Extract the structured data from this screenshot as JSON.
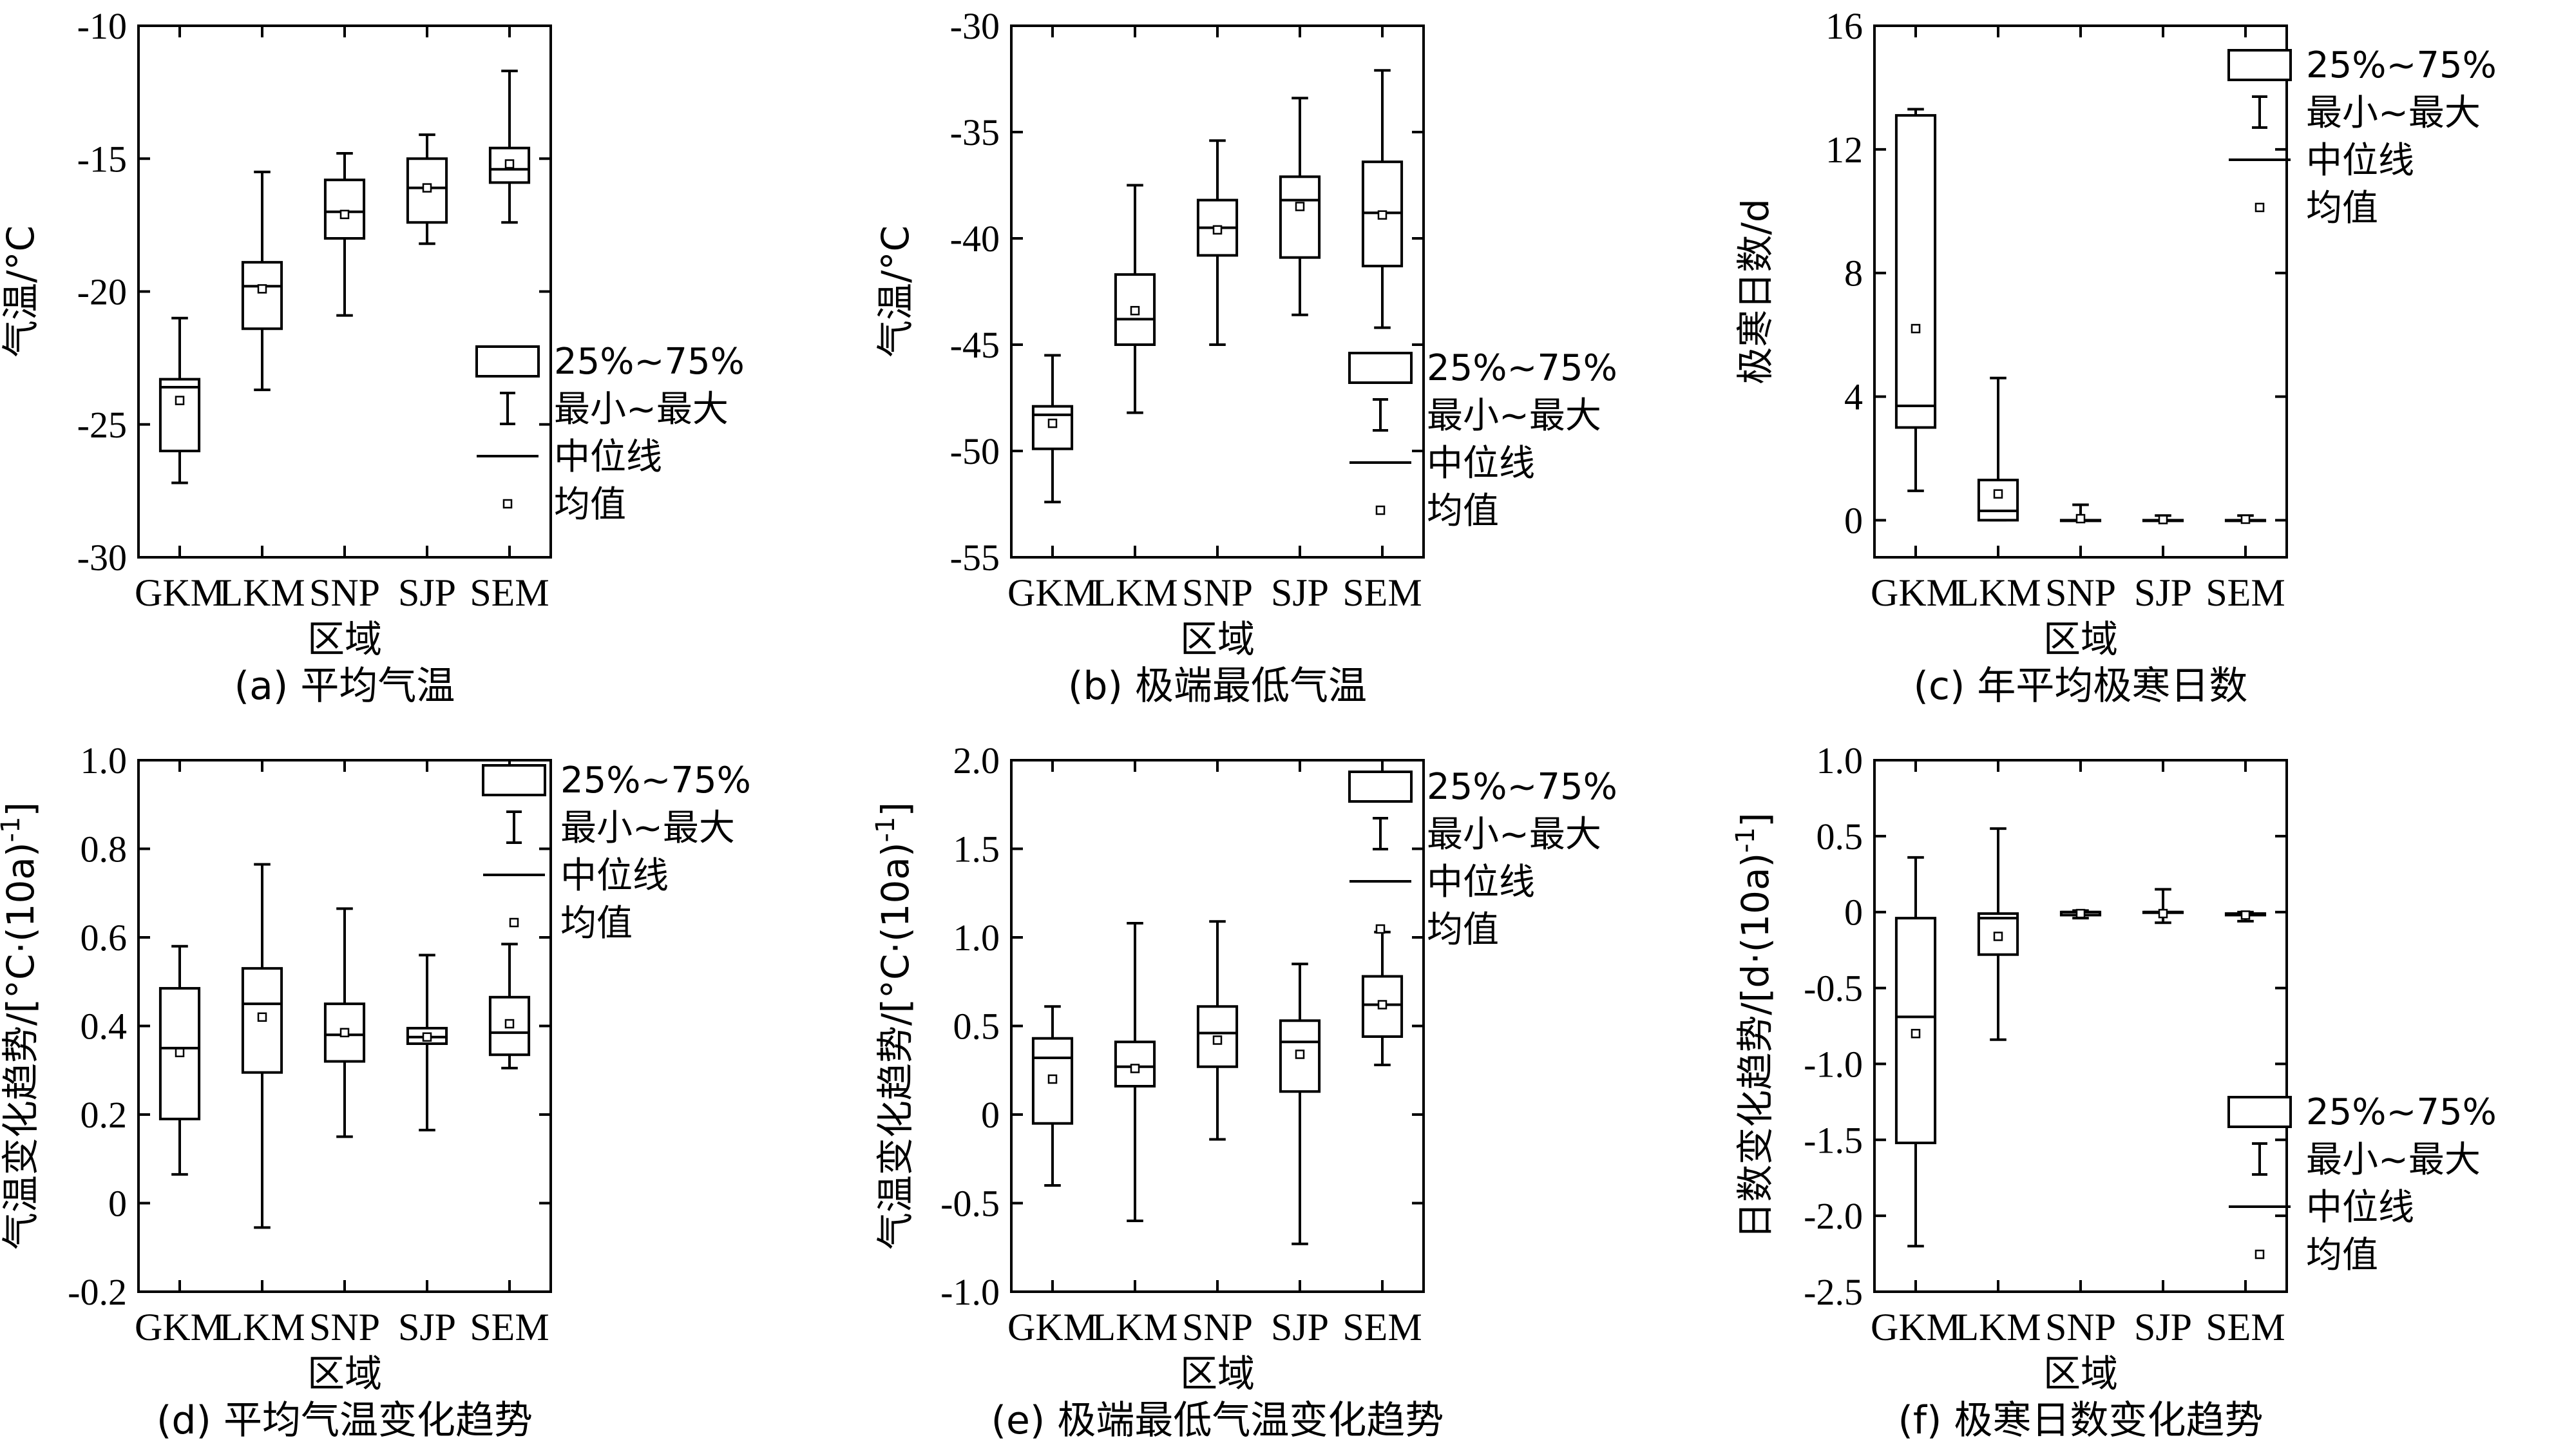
{
  "chart_data": [
    {
      "type": "box",
      "caption": "(a) 平均气温",
      "xlabel": "区域",
      "ylabel": "气温/°C",
      "ylim": [
        -30,
        -10
      ],
      "yticks": [
        -30,
        -25,
        -20,
        -15,
        -10
      ],
      "yticks_labels": [
        "-30",
        "-25",
        "-20",
        "-15",
        "-10"
      ],
      "categories": [
        "GKM",
        "LKM",
        "SNP",
        "SJP",
        "SEM"
      ],
      "boxes": [
        {
          "min": -27.2,
          "q1": -26.0,
          "median": -23.6,
          "q3": -23.3,
          "max": -21.0,
          "mean": -24.1
        },
        {
          "min": -23.7,
          "q1": -21.4,
          "median": -19.8,
          "q3": -18.9,
          "max": -15.5,
          "mean": -19.9
        },
        {
          "min": -20.9,
          "q1": -18.0,
          "median": -17.0,
          "q3": -15.8,
          "max": -14.8,
          "mean": -17.1
        },
        {
          "min": -18.2,
          "q1": -17.4,
          "median": -16.1,
          "q3": -15.0,
          "max": -14.1,
          "mean": -16.1
        },
        {
          "min": -17.4,
          "q1": -15.9,
          "median": -15.4,
          "q3": -14.6,
          "max": -11.7,
          "mean": -15.2
        }
      ],
      "legend": {
        "position": "lower-right",
        "items": [
          "25%~75%",
          "最小~最大",
          "中位线",
          "均值"
        ]
      }
    },
    {
      "type": "box",
      "caption": "(b) 极端最低气温",
      "xlabel": "区域",
      "ylabel": "气温/°C",
      "ylim": [
        -55,
        -30
      ],
      "yticks": [
        -55,
        -50,
        -45,
        -40,
        -35,
        -30
      ],
      "yticks_labels": [
        "-55",
        "-50",
        "-45",
        "-40",
        "-35",
        "-30"
      ],
      "categories": [
        "GKM",
        "LKM",
        "SNP",
        "SJP",
        "SEM"
      ],
      "boxes": [
        {
          "min": -52.4,
          "q1": -49.9,
          "median": -48.3,
          "q3": -47.9,
          "max": -45.5,
          "mean": -48.7
        },
        {
          "min": -48.2,
          "q1": -45.0,
          "median": -43.8,
          "q3": -41.7,
          "max": -37.5,
          "mean": -43.4
        },
        {
          "min": -45.0,
          "q1": -40.8,
          "median": -39.5,
          "q3": -38.2,
          "max": -35.4,
          "mean": -39.6
        },
        {
          "min": -43.6,
          "q1": -40.9,
          "median": -38.2,
          "q3": -37.1,
          "max": -33.4,
          "mean": -38.5
        },
        {
          "min": -44.2,
          "q1": -41.3,
          "median": -38.8,
          "q3": -36.4,
          "max": -32.1,
          "mean": -38.9
        }
      ],
      "legend": {
        "position": "lower-right",
        "items": [
          "25%~75%",
          "最小~最大",
          "中位线",
          "均值"
        ]
      }
    },
    {
      "type": "box",
      "caption": "(c) 年平均极寒日数",
      "xlabel": "区域",
      "ylabel": "极寒日数/d",
      "ylim": [
        -1.2,
        16
      ],
      "yticks": [
        0,
        4,
        8,
        12,
        16
      ],
      "yticks_labels": [
        "0",
        "4",
        "8",
        "12",
        "16"
      ],
      "categories": [
        "GKM",
        "LKM",
        "SNP",
        "SJP",
        "SEM"
      ],
      "boxes": [
        {
          "min": 0.95,
          "q1": 3.0,
          "median": 3.7,
          "q3": 13.1,
          "max": 13.3,
          "mean": 6.2
        },
        {
          "min": 0.0,
          "q1": 0.0,
          "median": 0.3,
          "q3": 1.3,
          "max": 4.6,
          "mean": 0.85
        },
        {
          "min": 0.0,
          "q1": 0.0,
          "median": 0.0,
          "q3": 0.0,
          "max": 0.5,
          "mean": 0.05
        },
        {
          "min": 0.0,
          "q1": 0.0,
          "median": 0.0,
          "q3": 0.0,
          "max": 0.15,
          "mean": 0.02
        },
        {
          "min": 0.0,
          "q1": 0.0,
          "median": 0.0,
          "q3": 0.0,
          "max": 0.15,
          "mean": 0.03
        }
      ],
      "legend": {
        "position": "top-right",
        "items": [
          "25%~75%",
          "最小~最大",
          "中位线",
          "均值"
        ]
      }
    },
    {
      "type": "box",
      "caption": "(d) 平均气温变化趋势",
      "xlabel": "区域",
      "ylabel": "气温变化趋势/[°C·(10a)",
      "ylabel_sup": "-1",
      "ylabel_end": "]",
      "ylim": [
        -0.2,
        1.0
      ],
      "yticks": [
        -0.2,
        0,
        0.2,
        0.4,
        0.6,
        0.8,
        1.0
      ],
      "yticks_labels": [
        "-0.2",
        "0",
        "0.2",
        "0.4",
        "0.6",
        "0.8",
        "1.0"
      ],
      "categories": [
        "GKM",
        "LKM",
        "SNP",
        "SJP",
        "SEM"
      ],
      "boxes": [
        {
          "min": 0.065,
          "q1": 0.19,
          "median": 0.35,
          "q3": 0.485,
          "max": 0.58,
          "mean": 0.34
        },
        {
          "min": -0.055,
          "q1": 0.295,
          "median": 0.45,
          "q3": 0.53,
          "max": 0.765,
          "mean": 0.42
        },
        {
          "min": 0.15,
          "q1": 0.32,
          "median": 0.38,
          "q3": 0.45,
          "max": 0.665,
          "mean": 0.385
        },
        {
          "min": 0.165,
          "q1": 0.36,
          "median": 0.375,
          "q3": 0.395,
          "max": 0.56,
          "mean": 0.375
        },
        {
          "min": 0.305,
          "q1": 0.335,
          "median": 0.385,
          "q3": 0.465,
          "max": 0.585,
          "mean": 0.405
        }
      ],
      "legend": {
        "position": "top-right",
        "items": [
          "25%~75%",
          "最小~最大",
          "中位线",
          "均值"
        ]
      }
    },
    {
      "type": "box",
      "caption": "(e) 极端最低气温变化趋势",
      "xlabel": "区域",
      "ylabel": "气温变化趋势/[°C·(10a)",
      "ylabel_sup": "-1",
      "ylabel_end": "]",
      "ylim": [
        -1.0,
        2.0
      ],
      "yticks": [
        -1.0,
        -0.5,
        0,
        0.5,
        1.0,
        1.5,
        2.0
      ],
      "yticks_labels": [
        "-1.0",
        "-0.5",
        "0",
        "0.5",
        "1.0",
        "1.5",
        "2.0"
      ],
      "categories": [
        "GKM",
        "LKM",
        "SNP",
        "SJP",
        "SEM"
      ],
      "boxes": [
        {
          "min": -0.4,
          "q1": -0.05,
          "median": 0.32,
          "q3": 0.43,
          "max": 0.61,
          "mean": 0.2
        },
        {
          "min": -0.6,
          "q1": 0.16,
          "median": 0.27,
          "q3": 0.41,
          "max": 1.08,
          "mean": 0.26
        },
        {
          "min": -0.14,
          "q1": 0.27,
          "median": 0.46,
          "q3": 0.61,
          "max": 1.09,
          "mean": 0.42
        },
        {
          "min": -0.73,
          "q1": 0.13,
          "median": 0.41,
          "q3": 0.53,
          "max": 0.85,
          "mean": 0.34
        },
        {
          "min": 0.28,
          "q1": 0.44,
          "median": 0.62,
          "q3": 0.78,
          "max": 1.03,
          "mean": 0.62
        }
      ],
      "legend": {
        "position": "top-right",
        "items": [
          "25%~75%",
          "最小~最大",
          "中位线",
          "均值"
        ]
      }
    },
    {
      "type": "box",
      "caption": "(f) 极寒日数变化趋势",
      "xlabel": "区域",
      "ylabel": "日数变化趋势/[d·(10a)",
      "ylabel_sup": "-1",
      "ylabel_end": "]",
      "ylim": [
        -2.5,
        1.0
      ],
      "yticks": [
        -2.5,
        -2.0,
        -1.5,
        -1.0,
        -0.5,
        0,
        0.5,
        1.0
      ],
      "yticks_labels": [
        "-2.5",
        "-2.0",
        "-1.5",
        "-1.0",
        "-0.5",
        "0",
        "0.5",
        "1.0"
      ],
      "categories": [
        "GKM",
        "LKM",
        "SNP",
        "SJP",
        "SEM"
      ],
      "boxes": [
        {
          "min": -2.2,
          "q1": -1.52,
          "median": -0.69,
          "q3": -0.04,
          "max": 0.36,
          "mean": -0.8
        },
        {
          "min": -0.84,
          "q1": -0.28,
          "median": -0.04,
          "q3": -0.01,
          "max": 0.55,
          "mean": -0.16
        },
        {
          "min": -0.04,
          "q1": -0.02,
          "median": 0.0,
          "q3": 0.0,
          "max": 0.01,
          "mean": -0.01
        },
        {
          "min": -0.07,
          "q1": 0.0,
          "median": 0.0,
          "q3": 0.0,
          "max": 0.15,
          "mean": -0.01
        },
        {
          "min": -0.06,
          "q1": -0.02,
          "median": -0.01,
          "q3": -0.01,
          "max": 0.0,
          "mean": -0.02
        }
      ],
      "legend": {
        "position": "lower-right",
        "items": [
          "25%~75%",
          "最小~最大",
          "中位线",
          "均值"
        ]
      }
    }
  ]
}
